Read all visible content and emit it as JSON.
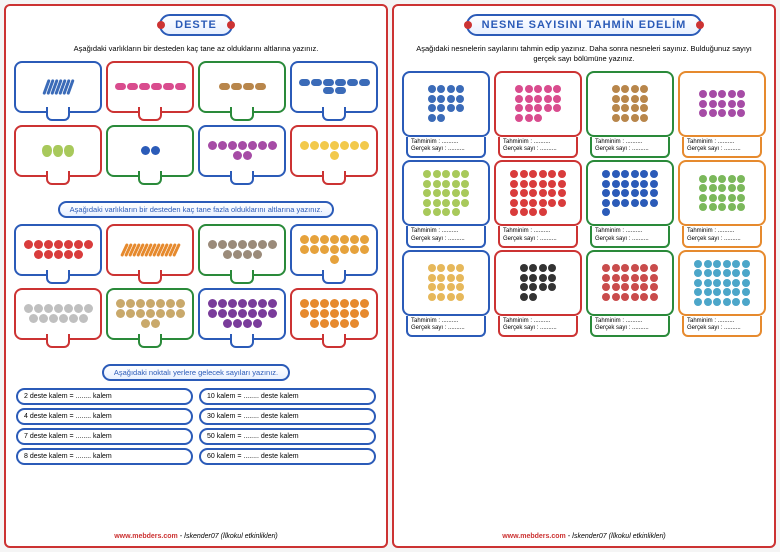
{
  "left": {
    "title": "DESTE",
    "instr1": "Aşağıdaki varlıkların bir desteden kaç tane az olduklarını altlarına yazınız.",
    "instr2": "Aşağıdaki varlıkların bir desteden kaç tane fazla olduklarını altlarına yazınız.",
    "instr3": "Aşağıdaki noktalı yerlere gelecek sayıları yazınız.",
    "grid1": [
      {
        "color": "blue",
        "items": [
          {
            "c": "#3b6bb8",
            "n": 7,
            "shape": "pen"
          }
        ]
      },
      {
        "color": "red",
        "items": [
          {
            "c": "#d94c8e",
            "n": 6,
            "shape": "oval"
          }
        ]
      },
      {
        "color": "green",
        "items": [
          {
            "c": "#b8864b",
            "n": 4,
            "shape": "oval"
          }
        ]
      },
      {
        "color": "blue",
        "items": [
          {
            "c": "#3b6bb8",
            "n": 8,
            "shape": "rect"
          }
        ]
      },
      {
        "color": "red",
        "items": [
          {
            "c": "#a8c95b",
            "n": 3,
            "shape": "pear"
          }
        ]
      },
      {
        "color": "green",
        "items": [
          {
            "c": "#2b5bb8",
            "n": 2,
            "shape": "circle"
          }
        ]
      },
      {
        "color": "blue",
        "items": [
          {
            "c": "#a64ca6",
            "n": 9,
            "shape": "swirl"
          }
        ]
      },
      {
        "color": "red",
        "items": [
          {
            "c": "#f2c94c",
            "n": 8,
            "shape": "chick"
          }
        ]
      }
    ],
    "grid2": [
      {
        "color": "blue",
        "items": [
          {
            "c": "#d93c3c",
            "n": 12,
            "shape": "berry"
          }
        ]
      },
      {
        "color": "red",
        "items": [
          {
            "c": "#e68a2e",
            "n": 14,
            "shape": "carrot"
          }
        ]
      },
      {
        "color": "green",
        "items": [
          {
            "c": "#9b8b7a",
            "n": 11,
            "shape": "circle"
          }
        ]
      },
      {
        "color": "blue",
        "items": [
          {
            "c": "#e6a23c",
            "n": 15,
            "shape": "tiger"
          }
        ]
      },
      {
        "color": "red",
        "items": [
          {
            "c": "#c0c0c0",
            "n": 13,
            "shape": "bunny"
          }
        ]
      },
      {
        "color": "green",
        "items": [
          {
            "c": "#c9a96b",
            "n": 16,
            "shape": "basket"
          }
        ]
      },
      {
        "color": "blue",
        "items": [
          {
            "c": "#7a3c9b",
            "n": 18,
            "shape": "onion"
          }
        ]
      },
      {
        "color": "red",
        "items": [
          {
            "c": "#e68a2e",
            "n": 19,
            "shape": "fish"
          }
        ]
      }
    ],
    "fills_left": [
      "2 deste kalem = ........ kalem",
      "4 deste kalem = ........ kalem",
      "7 deste kalem = ........ kalem",
      "8 deste kalem = ........ kalem"
    ],
    "fills_right": [
      "10 kalem = ........ deste kalem",
      "30 kalem = ........ deste kalem",
      "50 kalem = ........ deste kalem",
      "60 kalem = ........ deste kalem"
    ]
  },
  "right": {
    "title": "NESNE SAYISINI TAHMİN EDELİM",
    "instr": "Aşağıdaki nesnelerin sayılarını tahmin edip yazınız. Daha sonra nesneleri sayınız. Bulduğunuz sayıyı gerçek sayı bölümüne yazınız.",
    "label_guess": "Tahminim : ..........",
    "label_real": "Gerçek sayı : ..........",
    "grid": [
      {
        "border": "blue",
        "c": "#3b6bb8",
        "n": 14,
        "cols": 4
      },
      {
        "border": "red",
        "c": "#d94c8e",
        "n": 18,
        "cols": 5
      },
      {
        "border": "green",
        "c": "#b8864b",
        "n": 16,
        "cols": 4
      },
      {
        "border": "orange",
        "c": "#a64ca6",
        "n": 15,
        "cols": 5
      },
      {
        "border": "blue",
        "c": "#a8c95b",
        "n": 24,
        "cols": 5
      },
      {
        "border": "red",
        "c": "#d93c3c",
        "n": 28,
        "cols": 6
      },
      {
        "border": "green",
        "c": "#2b5bb8",
        "n": 25,
        "cols": 6
      },
      {
        "border": "orange",
        "c": "#7bb85b",
        "n": 20,
        "cols": 5
      },
      {
        "border": "blue",
        "c": "#e6b85b",
        "n": 16,
        "cols": 4
      },
      {
        "border": "red",
        "c": "#333",
        "n": 14,
        "cols": 4
      },
      {
        "border": "green",
        "c": "#c94c4c",
        "n": 24,
        "cols": 6
      },
      {
        "border": "orange",
        "c": "#4ca6c9",
        "n": 30,
        "cols": 6
      }
    ]
  },
  "footer": {
    "site": "www.mebders.com",
    "author": "- İskender07 (İlkokul etkinlikleri)"
  }
}
